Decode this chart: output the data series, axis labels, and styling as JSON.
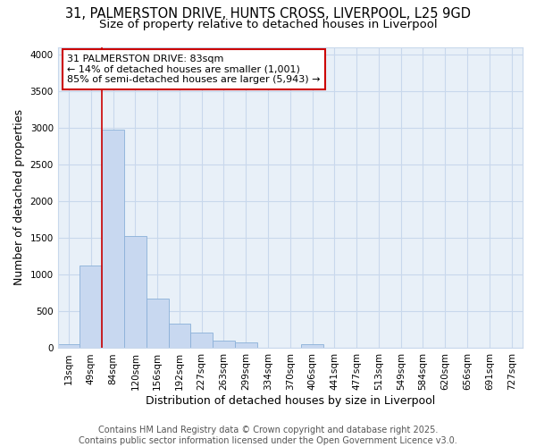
{
  "title_line1": "31, PALMERSTON DRIVE, HUNTS CROSS, LIVERPOOL, L25 9GD",
  "title_line2": "Size of property relative to detached houses in Liverpool",
  "xlabel": "Distribution of detached houses by size in Liverpool",
  "ylabel": "Number of detached properties",
  "categories": [
    "13sqm",
    "49sqm",
    "84sqm",
    "120sqm",
    "156sqm",
    "192sqm",
    "227sqm",
    "263sqm",
    "299sqm",
    "334sqm",
    "370sqm",
    "406sqm",
    "441sqm",
    "477sqm",
    "513sqm",
    "549sqm",
    "584sqm",
    "620sqm",
    "656sqm",
    "691sqm",
    "727sqm"
  ],
  "values": [
    60,
    1130,
    2970,
    1530,
    670,
    330,
    210,
    100,
    80,
    0,
    0,
    50,
    0,
    0,
    0,
    0,
    0,
    0,
    0,
    0,
    0
  ],
  "bar_color": "#c8d8f0",
  "bar_edge_color": "#8ab0d8",
  "annotation_box_text": "31 PALMERSTON DRIVE: 83sqm\n← 14% of detached houses are smaller (1,001)\n85% of semi-detached houses are larger (5,943) →",
  "annotation_box_color": "#ffffff",
  "annotation_box_edge_color": "#cc0000",
  "vline_color": "#cc0000",
  "vline_x_index": 2,
  "ylim": [
    0,
    4100
  ],
  "yticks": [
    0,
    500,
    1000,
    1500,
    2000,
    2500,
    3000,
    3500,
    4000
  ],
  "grid_color": "#c8d8ec",
  "background_color": "#e8f0f8",
  "footer_line1": "Contains HM Land Registry data © Crown copyright and database right 2025.",
  "footer_line2": "Contains public sector information licensed under the Open Government Licence v3.0.",
  "title_fontsize": 10.5,
  "subtitle_fontsize": 9.5,
  "axis_label_fontsize": 9,
  "tick_fontsize": 7.5,
  "annotation_fontsize": 8,
  "footer_fontsize": 7
}
